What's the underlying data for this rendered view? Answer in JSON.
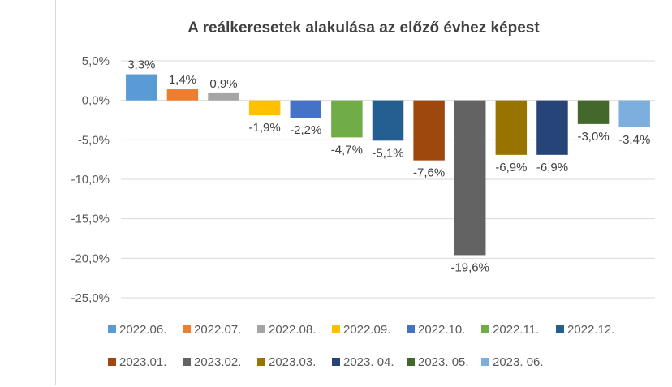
{
  "chart_data": {
    "type": "bar",
    "title": "A reálkeresetek alakulása az előző évhez képest",
    "xlabel": "",
    "ylabel": "",
    "ylim": [
      -25,
      5
    ],
    "yticks": [
      5,
      0,
      -5,
      -10,
      -15,
      -20,
      -25
    ],
    "ytick_labels": [
      "5,0%",
      "0,0%",
      "-5,0%",
      "-10,0%",
      "-15,0%",
      "-20,0%",
      "-25,0%"
    ],
    "grid": true,
    "legend_position": "bottom",
    "series": [
      {
        "name": "2022.06.",
        "value": 3.3,
        "label": "3,3%",
        "color": "#5b9bd5"
      },
      {
        "name": "2022.07.",
        "value": 1.4,
        "label": "1,4%",
        "color": "#ed7d31"
      },
      {
        "name": "2022.08.",
        "value": 0.9,
        "label": "0,9%",
        "color": "#a5a5a5"
      },
      {
        "name": "2022.09.",
        "value": -1.9,
        "label": "-1,9%",
        "color": "#ffc000"
      },
      {
        "name": "2022.10.",
        "value": -2.2,
        "label": "-2,2%",
        "color": "#4472c4"
      },
      {
        "name": "2022.11.",
        "value": -4.7,
        "label": "-4,7%",
        "color": "#70ad47"
      },
      {
        "name": "2022.12.",
        "value": -5.1,
        "label": "-5,1%",
        "color": "#255e91"
      },
      {
        "name": "2023.01.",
        "value": -7.6,
        "label": "-7,6%",
        "color": "#9e480e"
      },
      {
        "name": "2023.02.",
        "value": -19.6,
        "label": "-19,6%",
        "color": "#636363"
      },
      {
        "name": "2023.03.",
        "value": -6.9,
        "label": "-6,9%",
        "color": "#997300"
      },
      {
        "name": "2023. 04.",
        "value": -6.9,
        "label": "-6,9%",
        "color": "#264478"
      },
      {
        "name": "2023. 05.",
        "value": -3.0,
        "label": "-3,0%",
        "color": "#43682b"
      },
      {
        "name": "2023. 06.",
        "value": -3.4,
        "label": "-3,4%",
        "color": "#7cafdd"
      }
    ]
  }
}
